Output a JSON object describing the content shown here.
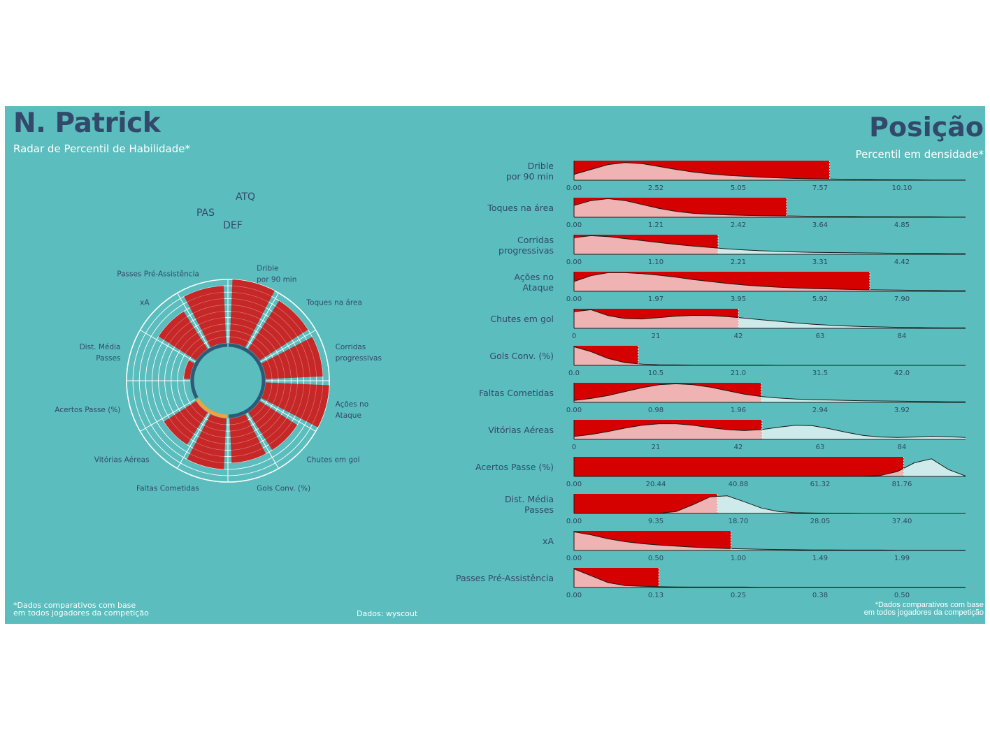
{
  "header": {
    "player_name": "N. Patrick",
    "left_subtitle": "Radar de Percentil de Habilidade*",
    "right_title": "Posição",
    "right_subtitle": "Percentil em densidade*"
  },
  "footer": {
    "left_line1": "*Dados comparativos com base",
    "left_line2": " em todos jogadores da competição",
    "source": "Dados: wyscout",
    "right_line1": "*Dados comparativos com base",
    "right_line2": "em todos jogadores da competição"
  },
  "colors": {
    "background": "#5bbdbd",
    "title": "#33496b",
    "radar_bar": "#c62828",
    "density_bar": "#d50000",
    "density_fill_below": "#efb3b3",
    "density_fill_above": "#cfeaea",
    "group_def": "#f5a03a",
    "group_other": "#2c5b78"
  },
  "chart_data": [
    {
      "type": "bar",
      "subtype": "polar-percentile",
      "groups": [
        "ATQ",
        "DEF",
        "PAS"
      ],
      "categories": [
        {
          "label": "Drible\npor 90 min",
          "group": "ATQ",
          "percentile": 100
        },
        {
          "label": "Toques na área",
          "group": "ATQ",
          "percentile": 90
        },
        {
          "label": "Corridas\nprogressivas",
          "group": "ATQ",
          "percentile": 90
        },
        {
          "label": "Ações no\nAtaque",
          "group": "ATQ",
          "percentile": 100
        },
        {
          "label": "Chutes em gol",
          "group": "ATQ",
          "percentile": 70
        },
        {
          "label": "Gols Conv. (%)",
          "group": "ATQ",
          "percentile": 70
        },
        {
          "label": "Faltas Cometidas",
          "group": "DEF",
          "percentile": 80
        },
        {
          "label": "Vitórias Aéreas",
          "group": "DEF",
          "percentile": 60
        },
        {
          "label": "Acertos Passe (%)",
          "group": "PAS",
          "percentile": 0
        },
        {
          "label": "Dist. Média\nPasses",
          "group": "PAS",
          "percentile": 10
        },
        {
          "label": "xA",
          "group": "PAS",
          "percentile": 70
        },
        {
          "label": "Passes Pré-Assistência",
          "group": "PAS",
          "percentile": 90
        }
      ],
      "ylim": [
        0,
        100
      ]
    },
    {
      "type": "area",
      "subtype": "density-percentile",
      "metrics": [
        {
          "label": "Drible\npor 90 min",
          "ticks": [
            "0.00",
            "2.52",
            "5.05",
            "7.57",
            "10.10"
          ],
          "value": 7.9,
          "max": 12.1,
          "density": [
            0.3,
            0.55,
            0.8,
            0.9,
            0.85,
            0.7,
            0.55,
            0.42,
            0.32,
            0.25,
            0.2,
            0.15,
            0.12,
            0.09,
            0.07,
            0.06,
            0.05,
            0.04,
            0.03,
            0.02,
            0.02,
            0.01,
            0.01,
            0.01
          ]
        },
        {
          "label": "Toques na área",
          "ticks": [
            "0.00",
            "1.21",
            "2.42",
            "3.64",
            "4.85"
          ],
          "value": 3.15,
          "max": 5.8,
          "density": [
            0.6,
            0.85,
            0.95,
            0.85,
            0.65,
            0.45,
            0.3,
            0.2,
            0.15,
            0.12,
            0.1,
            0.08,
            0.07,
            0.06,
            0.05,
            0.04,
            0.04,
            0.03,
            0.03,
            0.02,
            0.02,
            0.02,
            0.01,
            0.01
          ]
        },
        {
          "label": "Corridas\nprogressivas",
          "ticks": [
            "0.00",
            "1.10",
            "2.21",
            "3.31",
            "4.42"
          ],
          "value": 1.95,
          "max": 5.3,
          "density": [
            0.85,
            0.95,
            0.9,
            0.8,
            0.7,
            0.6,
            0.5,
            0.42,
            0.35,
            0.28,
            0.22,
            0.18,
            0.15,
            0.12,
            0.1,
            0.09,
            0.08,
            0.07,
            0.06,
            0.05,
            0.04,
            0.04,
            0.03,
            0.03
          ]
        },
        {
          "label": "Ações no\nAtaque",
          "ticks": [
            "0.00",
            "1.97",
            "3.95",
            "5.92",
            "7.90"
          ],
          "value": 7.1,
          "max": 9.4,
          "density": [
            0.5,
            0.8,
            0.95,
            0.95,
            0.9,
            0.82,
            0.72,
            0.6,
            0.5,
            0.4,
            0.32,
            0.26,
            0.21,
            0.17,
            0.14,
            0.12,
            0.1,
            0.08,
            0.07,
            0.06,
            0.05,
            0.04,
            0.03,
            0.03
          ]
        },
        {
          "label": "Chutes em gol",
          "ticks": [
            "0",
            "21",
            "42",
            "63",
            "84"
          ],
          "value": 42,
          "max": 100,
          "density": [
            0.85,
            0.95,
            0.65,
            0.5,
            0.48,
            0.55,
            0.62,
            0.66,
            0.65,
            0.6,
            0.52,
            0.44,
            0.36,
            0.28,
            0.21,
            0.16,
            0.12,
            0.09,
            0.07,
            0.05,
            0.04,
            0.03,
            0.02,
            0.02
          ]
        },
        {
          "label": "Gols Conv. (%)",
          "ticks": [
            "0.0",
            "10.5",
            "21.0",
            "31.5",
            "42.0"
          ],
          "value": 8.2,
          "max": 50,
          "density": [
            0.95,
            0.7,
            0.35,
            0.14,
            0.06,
            0.03,
            0.02,
            0.01,
            0.01,
            0.01,
            0.01,
            0.01,
            0.0,
            0.0,
            0.0,
            0.0,
            0.0,
            0.0,
            0.0,
            0.0,
            0.0,
            0.0,
            0.0,
            0.0
          ]
        },
        {
          "label": "Faltas Cometidas",
          "ticks": [
            "0.00",
            "0.98",
            "1.96",
            "2.94",
            "3.92"
          ],
          "value": 2.2,
          "max": 4.6,
          "density": [
            0.1,
            0.2,
            0.35,
            0.55,
            0.75,
            0.9,
            0.95,
            0.9,
            0.78,
            0.6,
            0.42,
            0.3,
            0.22,
            0.17,
            0.14,
            0.12,
            0.1,
            0.08,
            0.07,
            0.06,
            0.05,
            0.04,
            0.03,
            0.03
          ]
        },
        {
          "label": "Vitórias Aéreas",
          "ticks": [
            "0",
            "21",
            "42",
            "63",
            "84"
          ],
          "value": 48,
          "max": 100,
          "density": [
            0.15,
            0.25,
            0.4,
            0.58,
            0.72,
            0.8,
            0.8,
            0.72,
            0.6,
            0.5,
            0.45,
            0.5,
            0.62,
            0.72,
            0.7,
            0.55,
            0.36,
            0.2,
            0.12,
            0.1,
            0.12,
            0.16,
            0.14,
            0.1
          ]
        },
        {
          "label": "Acertos Passe (%)",
          "ticks": [
            "0.00",
            "20.44",
            "40.88",
            "61.32",
            "81.76"
          ],
          "value": 80,
          "max": 95,
          "density": [
            0.0,
            0.0,
            0.0,
            0.0,
            0.0,
            0.0,
            0.0,
            0.0,
            0.0,
            0.0,
            0.0,
            0.0,
            0.0,
            0.0,
            0.0,
            0.0,
            0.0,
            0.01,
            0.05,
            0.25,
            0.7,
            0.9,
            0.35,
            0.02
          ]
        },
        {
          "label": "Dist. Média\nPasses",
          "ticks": [
            "0.00",
            "9.35",
            "18.70",
            "28.05",
            "37.40"
          ],
          "value": 16.3,
          "max": 44.5,
          "density": [
            0.0,
            0.0,
            0.0,
            0.0,
            0.0,
            0.01,
            0.1,
            0.45,
            0.85,
            0.9,
            0.6,
            0.28,
            0.1,
            0.04,
            0.02,
            0.01,
            0.01,
            0.0,
            0.0,
            0.0,
            0.0,
            0.0,
            0.0,
            0.0
          ]
        },
        {
          "label": "xA",
          "ticks": [
            "0.00",
            "0.50",
            "1.00",
            "1.49",
            "1.99"
          ],
          "value": 0.95,
          "max": 2.37,
          "density": [
            0.95,
            0.8,
            0.6,
            0.45,
            0.35,
            0.28,
            0.22,
            0.17,
            0.13,
            0.1,
            0.08,
            0.06,
            0.05,
            0.04,
            0.03,
            0.03,
            0.02,
            0.02,
            0.02,
            0.01,
            0.01,
            0.01,
            0.01,
            0.01
          ]
        },
        {
          "label": "Passes Pré-Assistência",
          "ticks": [
            "0.00",
            "0.13",
            "0.25",
            "0.38",
            "0.50"
          ],
          "value": 0.065,
          "max": 0.3,
          "density": [
            0.95,
            0.6,
            0.25,
            0.1,
            0.06,
            0.04,
            0.03,
            0.02,
            0.02,
            0.02,
            0.02,
            0.01,
            0.01,
            0.01,
            0.01,
            0.01,
            0.01,
            0.01,
            0.01,
            0.01,
            0.01,
            0.01,
            0.01,
            0.01
          ]
        }
      ]
    }
  ]
}
